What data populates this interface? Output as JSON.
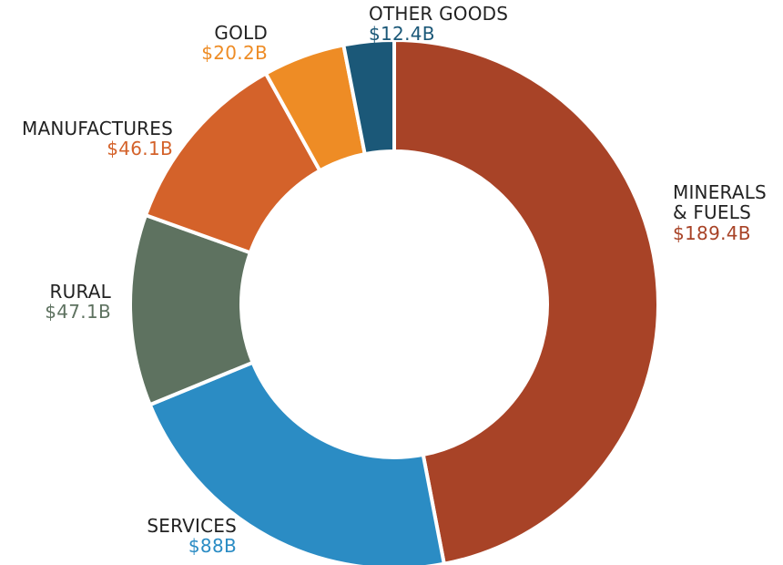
{
  "chart_data": {
    "type": "pie",
    "donut": true,
    "title": "",
    "series": [
      {
        "name": "MINERALS & FUELS",
        "name_lines": [
          "MINERALS",
          "& FUELS"
        ],
        "value": 189.4,
        "value_label": "$189.4B",
        "color": "#A84327"
      },
      {
        "name": "SERVICES",
        "name_lines": [
          "SERVICES"
        ],
        "value": 88,
        "value_label": "$88B",
        "color": "#2B8CC4"
      },
      {
        "name": "RURAL",
        "name_lines": [
          "RURAL"
        ],
        "value": 47.1,
        "value_label": "$47.1B",
        "color": "#5E7260"
      },
      {
        "name": "MANUFACTURES",
        "name_lines": [
          "MANUFACTURES"
        ],
        "value": 46.1,
        "value_label": "$46.1B",
        "color": "#D4622A"
      },
      {
        "name": "GOLD",
        "name_lines": [
          "GOLD"
        ],
        "value": 20.2,
        "value_label": "$20.2B",
        "color": "#EE8C25"
      },
      {
        "name": "OTHER GOODS",
        "name_lines": [
          "OTHER GOODS"
        ],
        "value": 12.4,
        "value_label": "$12.4B",
        "color": "#1B5878"
      }
    ],
    "start": "top",
    "direction": "clockwise"
  }
}
